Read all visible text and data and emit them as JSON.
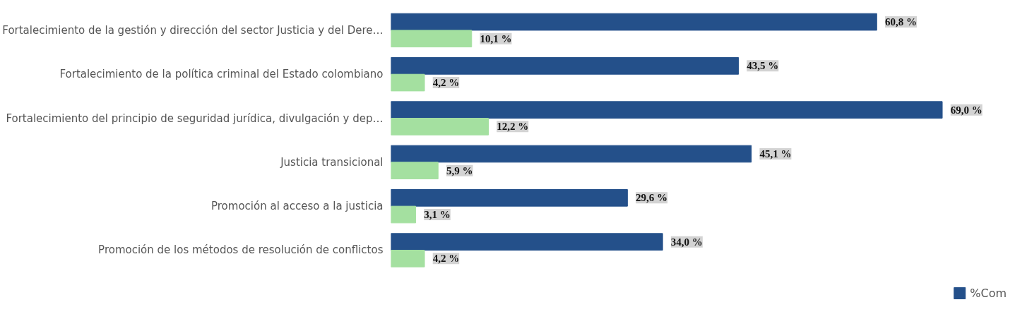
{
  "chart_data": {
    "type": "bar",
    "orientation": "horizontal",
    "categories": [
      "Fortalecimiento de la gestión y dirección del sector Justicia y del Dere…",
      "Fortalecimiento de la política criminal del Estado colombiano",
      "Fortalecimiento del principio de seguridad jurídica, divulgación y dep…",
      "Justicia transicional",
      "Promoción al acceso a la justicia",
      "Promoción de los métodos de resolución de conflictos"
    ],
    "series": [
      {
        "name": "%Com",
        "color": "#24508a",
        "values": [
          60.8,
          43.5,
          69.0,
          45.1,
          29.6,
          34.0
        ],
        "value_labels": [
          "60,8 %",
          "43,5 %",
          "69,0 %",
          "45,1 %",
          "29,6 %",
          "34,0 %"
        ]
      },
      {
        "color": "#a4e0a0",
        "values": [
          10.1,
          4.2,
          12.2,
          5.9,
          3.1,
          4.2
        ],
        "value_labels": [
          "10,1 %",
          "4,2 %",
          "12,2 %",
          "5,9 %",
          "3,1 %",
          "4,2 %"
        ]
      }
    ],
    "legend": "bottom right"
  }
}
